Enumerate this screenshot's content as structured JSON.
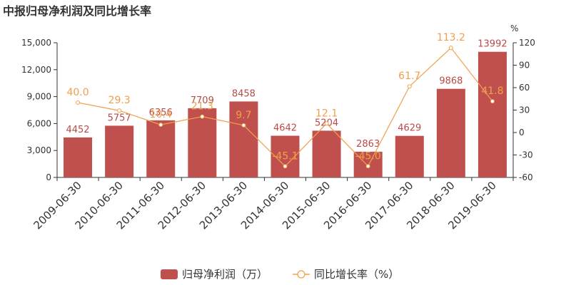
{
  "chart_data": {
    "type": "bar",
    "title": "中报归母净利润及同比增长率",
    "categories": [
      "2009-06-30",
      "2010-06-30",
      "2011-06-30",
      "2012-06-30",
      "2013-06-30",
      "2014-06-30",
      "2015-06-30",
      "2016-06-30",
      "2017-06-30",
      "2018-06-30",
      "2019-06-30"
    ],
    "series": [
      {
        "name": "归母净利润（万）",
        "type": "bar",
        "axis": "left",
        "color": "#c0504d",
        "values": [
          4452,
          5757,
          6356,
          7709,
          8458,
          4642,
          5204,
          2863,
          4629,
          9868,
          13992
        ],
        "labels": [
          "4452",
          "5757",
          "6356",
          "7709",
          "8458",
          "4642",
          "5204",
          "2863",
          "4629",
          "9868",
          "13992"
        ]
      },
      {
        "name": "同比增长率（%）",
        "type": "line",
        "axis": "right",
        "color": "#f0a04b",
        "values": [
          40.0,
          29.3,
          10.4,
          21.3,
          9.7,
          -45.1,
          12.1,
          -45.0,
          61.7,
          113.2,
          41.8
        ],
        "labels": [
          "40.0",
          "29.3",
          "10.4",
          "21.3",
          "9.7",
          "-45.1",
          "12.1",
          "-45.0",
          "61.7",
          "113.2",
          "41.8"
        ]
      }
    ],
    "y_left": {
      "ylim": [
        0,
        15000
      ],
      "ticks": [
        "0",
        "3,000",
        "6,000",
        "9,000",
        "12,000",
        "15,000"
      ]
    },
    "y_right": {
      "ylim": [
        -60,
        120
      ],
      "ticks": [
        "-60",
        "-30",
        "0",
        "30",
        "60",
        "90",
        "120"
      ],
      "unit": "%"
    },
    "legend_position": "bottom-center",
    "grid": false
  }
}
